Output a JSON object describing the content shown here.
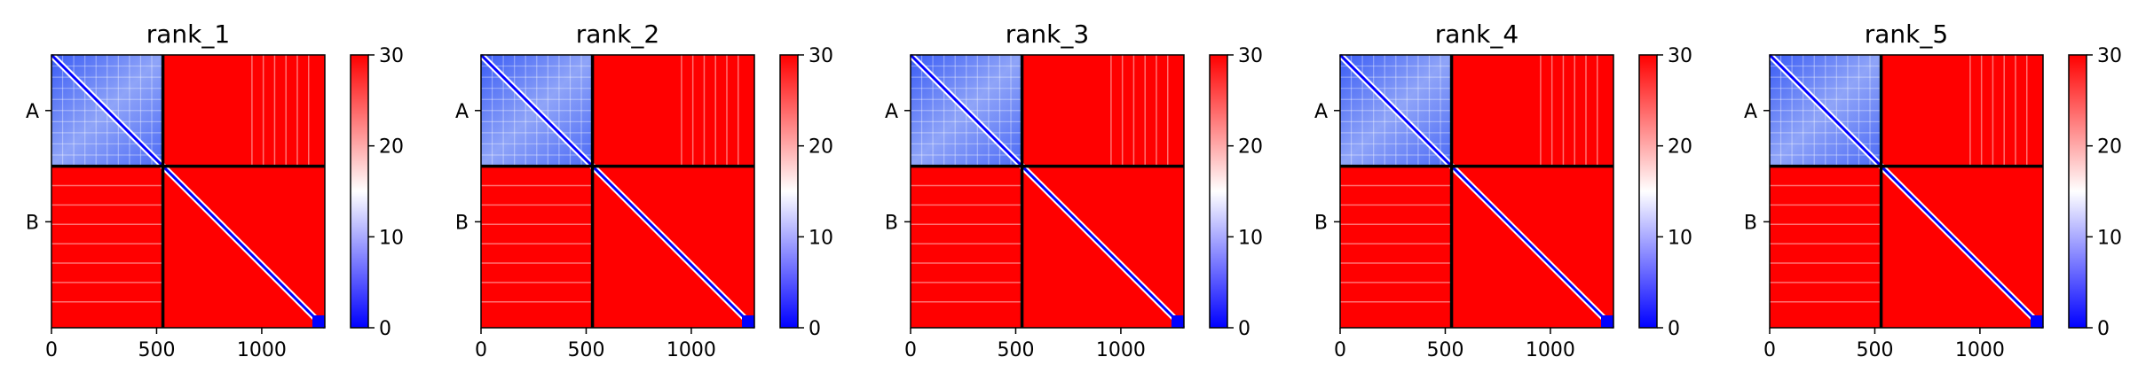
{
  "figure": {
    "colors": {
      "low": "#0000ff",
      "mid": "#ffffff",
      "high": "#ff0000",
      "axis": "#000000"
    }
  },
  "chart_data": [
    {
      "type": "heatmap",
      "title": "rank_1",
      "x": {
        "range": [
          0,
          1300
        ],
        "ticks": [
          0,
          500,
          1000
        ],
        "tick_labels": [
          "0",
          "500",
          "1000"
        ]
      },
      "y": {
        "range": [
          0,
          1300
        ],
        "tick_labels": [
          "A",
          "B"
        ],
        "tick_positions": [
          265,
          795
        ]
      },
      "chain_boundary": 530,
      "colorbar": {
        "min": 0,
        "max": 30,
        "ticks": [
          0,
          10,
          20,
          30
        ],
        "tick_labels": [
          "0",
          "10",
          "20",
          "30"
        ],
        "colormap": "bwr"
      },
      "regions": {
        "chain_A_block": "low",
        "chain_B_block": "high",
        "inter_chain": "high",
        "diagonal": "low"
      }
    },
    {
      "type": "heatmap",
      "title": "rank_2",
      "x": {
        "range": [
          0,
          1300
        ],
        "ticks": [
          0,
          500,
          1000
        ],
        "tick_labels": [
          "0",
          "500",
          "1000"
        ]
      },
      "y": {
        "range": [
          0,
          1300
        ],
        "tick_labels": [
          "A",
          "B"
        ],
        "tick_positions": [
          265,
          795
        ]
      },
      "chain_boundary": 530,
      "colorbar": {
        "min": 0,
        "max": 30,
        "ticks": [
          0,
          10,
          20,
          30
        ],
        "tick_labels": [
          "0",
          "10",
          "20",
          "30"
        ],
        "colormap": "bwr"
      },
      "regions": {
        "chain_A_block": "low",
        "chain_B_block": "high",
        "inter_chain": "high",
        "diagonal": "low"
      }
    },
    {
      "type": "heatmap",
      "title": "rank_3",
      "x": {
        "range": [
          0,
          1300
        ],
        "ticks": [
          0,
          500,
          1000
        ],
        "tick_labels": [
          "0",
          "500",
          "1000"
        ]
      },
      "y": {
        "range": [
          0,
          1300
        ],
        "tick_labels": [
          "A",
          "B"
        ],
        "tick_positions": [
          265,
          795
        ]
      },
      "chain_boundary": 530,
      "colorbar": {
        "min": 0,
        "max": 30,
        "ticks": [
          0,
          10,
          20,
          30
        ],
        "tick_labels": [
          "0",
          "10",
          "20",
          "30"
        ],
        "colormap": "bwr"
      },
      "regions": {
        "chain_A_block": "low",
        "chain_B_block": "high",
        "inter_chain": "high",
        "diagonal": "low"
      }
    },
    {
      "type": "heatmap",
      "title": "rank_4",
      "x": {
        "range": [
          0,
          1300
        ],
        "ticks": [
          0,
          500,
          1000
        ],
        "tick_labels": [
          "0",
          "500",
          "1000"
        ]
      },
      "y": {
        "range": [
          0,
          1300
        ],
        "tick_labels": [
          "A",
          "B"
        ],
        "tick_positions": [
          265,
          795
        ]
      },
      "chain_boundary": 530,
      "colorbar": {
        "min": 0,
        "max": 30,
        "ticks": [
          0,
          10,
          20,
          30
        ],
        "tick_labels": [
          "0",
          "10",
          "20",
          "30"
        ],
        "colormap": "bwr"
      },
      "regions": {
        "chain_A_block": "low",
        "chain_B_block": "high",
        "inter_chain": "high",
        "diagonal": "low"
      }
    },
    {
      "type": "heatmap",
      "title": "rank_5",
      "x": {
        "range": [
          0,
          1300
        ],
        "ticks": [
          0,
          500,
          1000
        ],
        "tick_labels": [
          "0",
          "500",
          "1000"
        ]
      },
      "y": {
        "range": [
          0,
          1300
        ],
        "tick_labels": [
          "A",
          "B"
        ],
        "tick_positions": [
          265,
          795
        ]
      },
      "chain_boundary": 530,
      "colorbar": {
        "min": 0,
        "max": 30,
        "ticks": [
          0,
          10,
          20,
          30
        ],
        "tick_labels": [
          "0",
          "10",
          "20",
          "30"
        ],
        "colormap": "bwr"
      },
      "regions": {
        "chain_A_block": "low",
        "chain_B_block": "high",
        "inter_chain": "high",
        "diagonal": "low"
      }
    }
  ]
}
